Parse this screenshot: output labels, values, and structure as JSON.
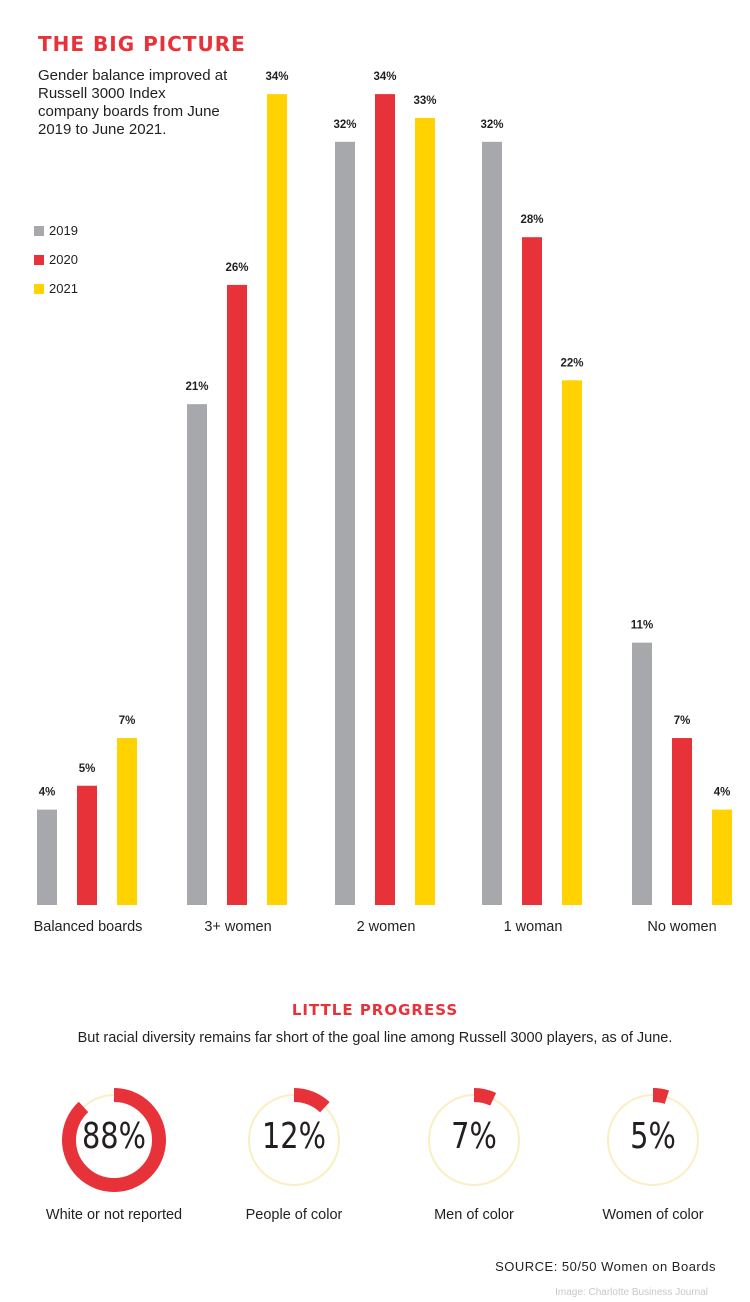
{
  "header": {
    "title": "THE BIG PICTURE",
    "intro": "Gender balance improved at Russell 3000 Index company boards from June 2019 to June 2021."
  },
  "colors": {
    "accent": "#e8323a",
    "series_2019": "#a7a8ac",
    "series_2020": "#e8323a",
    "series_2021": "#ffd200",
    "ring_track": "#fbeec2"
  },
  "chart_data": [
    {
      "type": "bar",
      "title": "THE BIG PICTURE",
      "categories": [
        "Balanced boards",
        "3+ women",
        "2 women",
        "1 woman",
        "No women"
      ],
      "series": [
        {
          "name": "2019",
          "values": [
            4,
            21,
            32,
            32,
            11
          ],
          "color": "#a7a8ac"
        },
        {
          "name": "2020",
          "values": [
            5,
            26,
            34,
            28,
            7
          ],
          "color": "#e8323a"
        },
        {
          "name": "2021",
          "values": [
            7,
            34,
            33,
            22,
            4
          ],
          "color": "#ffd200"
        }
      ],
      "value_labels": [
        [
          "4%",
          "21%",
          "32%",
          "32%",
          "11%"
        ],
        [
          "5%",
          "26%",
          "34%",
          "28%",
          "7%"
        ],
        [
          "7%",
          "34%",
          "33%",
          "22%",
          "4%"
        ]
      ],
      "ylim": [
        0,
        34
      ],
      "grid": false,
      "legend_position": "top-left",
      "unit": "%"
    },
    {
      "type": "pie",
      "title": "LITTLE PROGRESS",
      "subtitle": "But racial diversity remains far short of the goal line among Russell 3000 players, as of June.",
      "items": [
        {
          "label": "White or not reported",
          "value": 88,
          "display": "88%"
        },
        {
          "label": "People of color",
          "value": 12,
          "display": "12%"
        },
        {
          "label": "Men of color",
          "value": 7,
          "display": "7%"
        },
        {
          "label": "Women of color",
          "value": 5,
          "display": "5%"
        }
      ]
    }
  ],
  "footer": {
    "source": "SOURCE: 50/50 Women on Boards",
    "credit": "Image: Charlotte Business Journal"
  }
}
